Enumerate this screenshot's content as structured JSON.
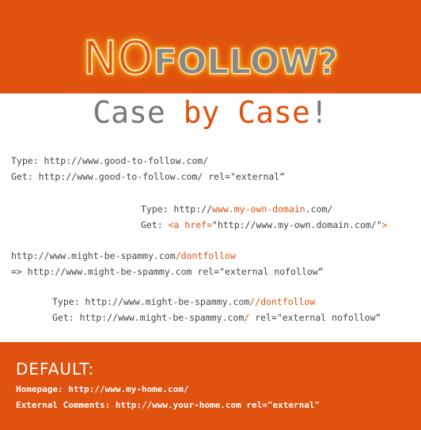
{
  "headline": {
    "no": "NO",
    "follow": "FOLLOW?"
  },
  "subtitle": {
    "part1": "Case ",
    "part2": "by Case",
    "part3": "!"
  },
  "case1": {
    "type": "Type: http://www.good-to-follow.com/",
    "get": "Get: http://www.good-to-follow.com/ rel=\"external“"
  },
  "case2": {
    "type_pre": "Type: http://",
    "type_hl": "www.my-own-domain",
    "type_post": ".com/",
    "get_pre": "Get: ",
    "get_hl1": "<a href=",
    "get_mid": "\"http://www.my-own.domain.com/\"",
    "get_hl2": ">"
  },
  "case3": {
    "line1_pre": "http://www.might-be-spammy.com",
    "line1_hl": "/dontfollow",
    "line2": "=> http://www.might-be-spammy.com rel=\"external nofollow“"
  },
  "case4": {
    "type_pre": "Type: http://www.might-be-spammy.com",
    "type_hl": "//dontfollow",
    "get_pre": "Get: http://www.might-be-spammy.com",
    "get_hl": "/",
    "get_post": " rel=\"external nofollow“"
  },
  "default": {
    "title": "DEFAULT:",
    "homepage": "Homepage: http://www.my-home.com/",
    "comments": "External Comments: http://www.your-home.com rel=\"external\""
  },
  "colors": {
    "accent": "#e0520f",
    "text": "#444444",
    "gray": "#777777"
  }
}
